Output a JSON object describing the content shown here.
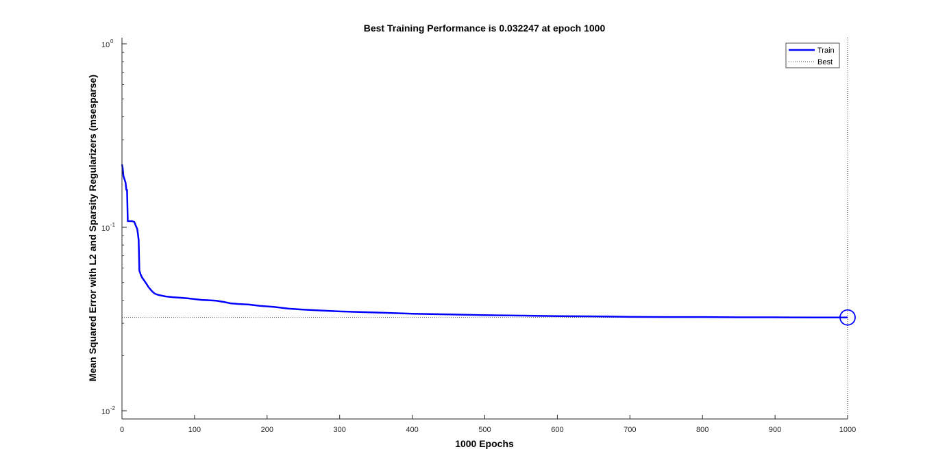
{
  "chart_data": {
    "type": "line",
    "title": "Best Training Performance is 0.032247 at epoch 1000",
    "xlabel": "1000 Epochs",
    "ylabel": "Mean Squared Error with L2 and Sparsity Regularizers  (msesparse)",
    "xlim": [
      0,
      1000
    ],
    "ylim": [
      0.01,
      1
    ],
    "yscale": "log",
    "x_ticks": [
      0,
      100,
      200,
      300,
      400,
      500,
      600,
      700,
      800,
      900,
      1000
    ],
    "y_ticks": [
      {
        "value": 0.01,
        "base": "10",
        "exp": "-2"
      },
      {
        "value": 0.1,
        "base": "10",
        "exp": "-1"
      },
      {
        "value": 1,
        "base": "10",
        "exp": "0"
      }
    ],
    "legend": {
      "position": "top-right",
      "entries": [
        {
          "label": "Train",
          "style": "solid",
          "color": "#0000ff"
        },
        {
          "label": "Best",
          "style": "dotted",
          "color": "#000000"
        }
      ]
    },
    "best": {
      "epoch": 1000,
      "value": 0.032247
    },
    "series": [
      {
        "name": "Train",
        "color": "#0000ff",
        "points": [
          [
            0,
            0.22
          ],
          [
            1,
            0.21
          ],
          [
            2,
            0.19
          ],
          [
            3,
            0.185
          ],
          [
            4,
            0.18
          ],
          [
            5,
            0.175
          ],
          [
            6,
            0.16
          ],
          [
            7,
            0.16
          ],
          [
            8,
            0.108
          ],
          [
            10,
            0.108
          ],
          [
            14,
            0.108
          ],
          [
            17,
            0.107
          ],
          [
            19,
            0.102
          ],
          [
            21,
            0.098
          ],
          [
            22,
            0.092
          ],
          [
            23,
            0.085
          ],
          [
            24,
            0.058
          ],
          [
            26,
            0.055
          ],
          [
            28,
            0.053
          ],
          [
            31,
            0.051
          ],
          [
            34,
            0.049
          ],
          [
            37,
            0.047
          ],
          [
            41,
            0.045
          ],
          [
            45,
            0.0435
          ],
          [
            50,
            0.0428
          ],
          [
            60,
            0.042
          ],
          [
            70,
            0.0416
          ],
          [
            80,
            0.0413
          ],
          [
            90,
            0.041
          ],
          [
            100,
            0.0406
          ],
          [
            110,
            0.0402
          ],
          [
            120,
            0.04
          ],
          [
            130,
            0.0398
          ],
          [
            140,
            0.0392
          ],
          [
            150,
            0.0385
          ],
          [
            160,
            0.0382
          ],
          [
            175,
            0.0379
          ],
          [
            190,
            0.0373
          ],
          [
            210,
            0.0368
          ],
          [
            230,
            0.036
          ],
          [
            250,
            0.0356
          ],
          [
            280,
            0.0351
          ],
          [
            300,
            0.0348
          ],
          [
            350,
            0.0343
          ],
          [
            400,
            0.0338
          ],
          [
            450,
            0.0335
          ],
          [
            500,
            0.0332
          ],
          [
            550,
            0.033
          ],
          [
            600,
            0.0328
          ],
          [
            650,
            0.0327
          ],
          [
            700,
            0.0325
          ],
          [
            750,
            0.0324
          ],
          [
            800,
            0.0324
          ],
          [
            850,
            0.0323
          ],
          [
            900,
            0.0323
          ],
          [
            950,
            0.03225
          ],
          [
            1000,
            0.032247
          ]
        ]
      }
    ]
  }
}
